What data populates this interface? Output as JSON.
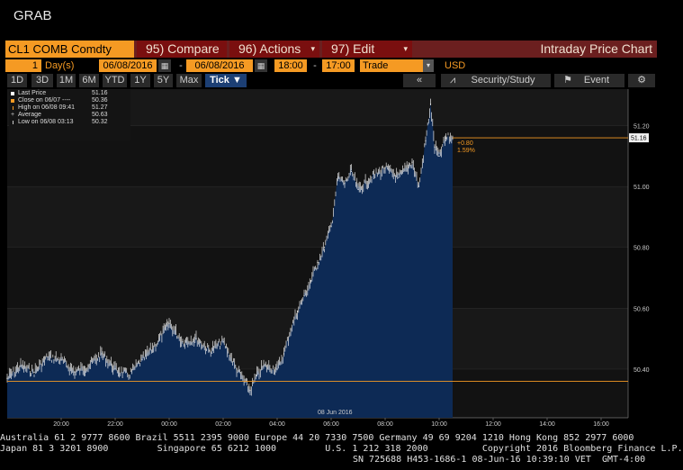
{
  "app": {
    "title": "GRAB"
  },
  "toolbar": {
    "ticker": "CL1 COMB Comdty",
    "compare_num": "95)",
    "compare_label": "Compare",
    "actions_num": "96)",
    "actions_label": "Actions",
    "edit_num": "97)",
    "edit_label": "Edit",
    "chart_title": "Intraday Price Chart"
  },
  "params": {
    "period_count": "1",
    "period_unit": "Day(s)",
    "start_date": "06/08/2016",
    "end_date": "06/08/2016",
    "start_time": "18:00",
    "end_time": "17:00",
    "event_type": "Trade",
    "currency": "USD"
  },
  "ranges": {
    "buttons": [
      "1D",
      "3D",
      "1M",
      "6M",
      "YTD",
      "1Y",
      "5Y",
      "Max"
    ],
    "interval": "Tick ▼"
  },
  "tools": {
    "security_study": "Security/Study",
    "event": "Event"
  },
  "legend": {
    "last_price_label": "Last Price",
    "last_price_value": "51.16",
    "close_label": "Close on 06/07 ----",
    "close_value": "50.36",
    "high_label": "High on 06/08 09:41",
    "high_value": "51.27",
    "avg_label": "Average",
    "avg_value": "50.63",
    "low_label": "Low on 06/08 03:13",
    "low_value": "50.32"
  },
  "annotations": {
    "change": "+0.80",
    "change_pct": "1.59%",
    "last_tag": "51.16",
    "date_tag": "08 Jun 2016"
  },
  "colors": {
    "accent": "#f59a23",
    "fill": "#0d2a55",
    "line": "#e8e8e8"
  },
  "chart_data": {
    "type": "area",
    "title": "",
    "xlabel": "",
    "ylabel": "",
    "ylim": [
      50.24,
      51.32
    ],
    "yticks": [
      "51.20",
      "51.00",
      "50.80",
      "50.60",
      "50.40"
    ],
    "xticks": [
      "20:00",
      "22:00",
      "00:00",
      "02:00",
      "04:00",
      "06:00",
      "08:00",
      "10:00",
      "12:00",
      "14:00",
      "16:00"
    ],
    "close_level": 50.36,
    "last_level": 51.16,
    "series": [
      {
        "x": [
          "18:00",
          "18:30",
          "19:00",
          "19:30",
          "20:00",
          "20:30",
          "21:00",
          "21:30",
          "22:00",
          "22:30",
          "23:00",
          "23:30",
          "00:00",
          "00:30",
          "01:00",
          "01:30",
          "02:00",
          "02:30",
          "03:00",
          "03:15",
          "03:30",
          "04:00",
          "04:15",
          "04:30",
          "04:45",
          "05:00",
          "05:15",
          "05:30",
          "05:45",
          "06:00",
          "06:15",
          "06:30",
          "06:45",
          "07:00",
          "07:30",
          "08:00",
          "08:30",
          "09:00",
          "09:15",
          "09:30",
          "09:41",
          "09:50",
          "10:00",
          "10:15",
          "10:30"
        ],
        "values": [
          50.37,
          50.41,
          50.39,
          50.44,
          50.43,
          50.39,
          50.41,
          50.45,
          50.4,
          50.38,
          50.43,
          50.48,
          50.55,
          50.49,
          50.5,
          50.46,
          50.49,
          50.4,
          50.33,
          50.38,
          50.41,
          50.4,
          50.45,
          50.53,
          50.59,
          50.64,
          50.69,
          50.75,
          50.8,
          50.87,
          51.03,
          51.01,
          51.05,
          50.99,
          51.03,
          51.06,
          51.03,
          51.08,
          51.0,
          51.15,
          51.27,
          51.13,
          51.1,
          51.16,
          51.16
        ]
      }
    ]
  },
  "footer": {
    "line1": "Australia 61 2 9777 8600 Brazil 5511 2395 9000 Europe 44 20 7330 7500 Germany 49 69 9204 1210 Hong Kong 852 2977 6000",
    "line2": "Japan 81 3 3201 8900         Singapore 65 6212 1000         U.S. 1 212 318 2000          Copyright 2016 Bloomberg Finance L.P.",
    "line3": "SN 725688 H453-1686-1 08-Jun-16 10:39:10 VET  GMT-4:00"
  }
}
